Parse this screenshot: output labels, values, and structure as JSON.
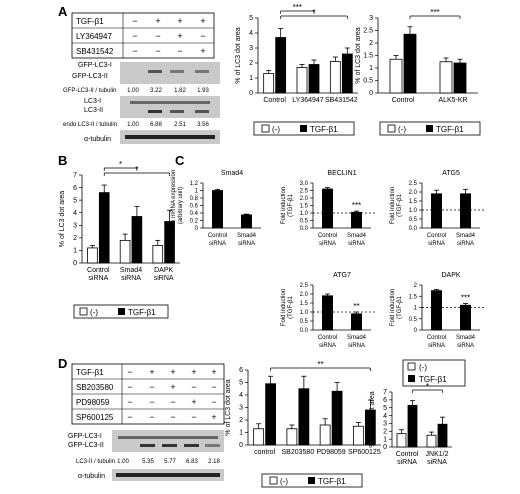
{
  "panel_letters": [
    "A",
    "B",
    "C",
    "D"
  ],
  "panelA": {
    "treatment_rows": [
      "TGF-β1",
      "LY364947",
      "SB431542"
    ],
    "treatment_signs": [
      [
        "−",
        "+",
        "+",
        "+"
      ],
      [
        "−",
        "−",
        "+",
        "−"
      ],
      [
        "−",
        "−",
        "−",
        "+"
      ]
    ],
    "blot_labels": [
      "GFP-LC3-I",
      "GFP-LC3-II",
      "LC3-I",
      "LC3-II",
      "α-tubulin"
    ],
    "ratio_gfp": {
      "label": "GFP-LC3-II / tubulin",
      "values": [
        "1.00",
        "3.22",
        "1.82",
        "1.93"
      ]
    },
    "ratio_endo": {
      "label": "endo LC3-II / tubulin",
      "values": [
        "1.00",
        "6.88",
        "2.51",
        "3.56"
      ]
    }
  },
  "panelD": {
    "treatment_rows": [
      "TGF-β1",
      "SB203580",
      "PD98059",
      "SP600125"
    ],
    "treatment_signs": [
      [
        "−",
        "+",
        "+",
        "+",
        "+"
      ],
      [
        "−",
        "−",
        "+",
        "−",
        "−"
      ],
      [
        "−",
        "−",
        "−",
        "+",
        "−"
      ],
      [
        "−",
        "−",
        "−",
        "−",
        "+"
      ]
    ],
    "blot_labels": [
      "GFP-LC3-I",
      "GFP-LC3-II",
      "α-tubulin"
    ],
    "ratio": {
      "label": "LC3-II / tubulin",
      "values": [
        "1.00",
        "5.35",
        "5.77",
        "6.83",
        "2.18"
      ]
    }
  },
  "legend": {
    "neg": "(-)",
    "pos": "TGF-β1"
  },
  "chart_data": [
    {
      "id": "A1",
      "type": "bar",
      "ylabel": "% of LC3 dot area",
      "ylim": [
        0,
        5
      ],
      "yticks": [
        0,
        1,
        2,
        3,
        4,
        5
      ],
      "categories": [
        "Control",
        "LY364947",
        "SB431542"
      ],
      "series": [
        {
          "name": "(-)",
          "values": [
            1.3,
            1.7,
            2.1
          ],
          "errors": [
            0.2,
            0.2,
            0.3
          ]
        },
        {
          "name": "TGF-β1",
          "values": [
            3.7,
            1.9,
            2.6
          ],
          "errors": [
            0.6,
            0.3,
            0.4
          ]
        }
      ],
      "significance": [
        "***",
        "*"
      ]
    },
    {
      "id": "A2",
      "type": "bar",
      "ylabel": "% of LC3 dot area",
      "ylim": [
        0,
        3
      ],
      "yticks": [
        0,
        0.5,
        1,
        1.5,
        2,
        2.5,
        3
      ],
      "categories": [
        "Control",
        "ALK5-KR"
      ],
      "series": [
        {
          "name": "(-)",
          "values": [
            1.35,
            1.25
          ],
          "errors": [
            0.15,
            0.15
          ]
        },
        {
          "name": "TGF-β1",
          "values": [
            2.35,
            1.2
          ],
          "errors": [
            0.3,
            0.15
          ]
        }
      ],
      "significance": [
        "***"
      ]
    },
    {
      "id": "B",
      "type": "bar",
      "ylabel": "% of LC3 dot area",
      "ylim": [
        0,
        7
      ],
      "yticks": [
        0,
        1,
        2,
        3,
        4,
        5,
        6,
        7
      ],
      "categories": [
        "Control siRNA",
        "Smad4 siRNA",
        "DAPK siRNA"
      ],
      "series": [
        {
          "name": "(-)",
          "values": [
            1.2,
            1.8,
            1.4
          ],
          "errors": [
            0.2,
            0.5,
            0.4
          ]
        },
        {
          "name": "TGF-β1",
          "values": [
            5.6,
            3.7,
            3.3
          ],
          "errors": [
            0.6,
            0.8,
            0.9
          ]
        }
      ],
      "significance": [
        "*",
        "*"
      ]
    },
    {
      "id": "C1",
      "type": "bar",
      "title": "Smad4",
      "ylabel": "Relative mRNA expression (arbitrary unit)",
      "ylim": [
        0,
        1.2
      ],
      "yticks": [
        0,
        0.2,
        0.4,
        0.6,
        0.8,
        1.0,
        1.2
      ],
      "categories": [
        "Control siRNA",
        "Smad4 siRNA"
      ],
      "values": [
        1.0,
        0.35
      ],
      "errors": [
        0.03,
        0.02
      ]
    },
    {
      "id": "C2",
      "type": "bar",
      "title": "BECLIN1",
      "ylabel": "Fold induction (TGF-β1 (+) / (-))",
      "ylim": [
        0,
        3
      ],
      "yticks": [
        0,
        0.5,
        1,
        1.5,
        2,
        2.5,
        3
      ],
      "categories": [
        "Control siRNA",
        "Smad4 siRNA"
      ],
      "values": [
        2.6,
        1.05
      ],
      "errors": [
        0.1,
        0.08
      ],
      "significance": [
        "***"
      ]
    },
    {
      "id": "C3",
      "type": "bar",
      "title": "ATG5",
      "ylabel": "Fold induction (TGF-β1 (+) / (-))",
      "ylim": [
        0,
        2.5
      ],
      "yticks": [
        0,
        0.5,
        1,
        1.5,
        2,
        2.5
      ],
      "categories": [
        "Control siRNA",
        "Smad4 siRNA"
      ],
      "values": [
        1.9,
        1.9
      ],
      "errors": [
        0.2,
        0.25
      ]
    },
    {
      "id": "C4",
      "type": "bar",
      "title": "ATG7",
      "ylabel": "Fold induction (TGF-β1 (+) / (-))",
      "ylim": [
        0,
        2.5
      ],
      "yticks": [
        0,
        0.5,
        1,
        1.5,
        2,
        2.5
      ],
      "categories": [
        "Control siRNA",
        "Smad4 siRNA"
      ],
      "values": [
        1.9,
        0.9
      ],
      "errors": [
        0.1,
        0.1
      ],
      "significance": [
        "**"
      ]
    },
    {
      "id": "C5",
      "type": "bar",
      "title": "DAPK",
      "ylabel": "Fold induction (TGF-β1 (+) / (-))",
      "ylim": [
        0,
        2
      ],
      "yticks": [
        0,
        0.5,
        1,
        1.5,
        2
      ],
      "categories": [
        "Control siRNA",
        "Smad4 siRNA"
      ],
      "values": [
        1.75,
        1.1
      ],
      "errors": [
        0.05,
        0.08
      ],
      "significance": [
        "***"
      ]
    },
    {
      "id": "D1",
      "type": "bar",
      "ylabel": "% of LC3 dot area",
      "ylim": [
        0,
        6
      ],
      "yticks": [
        0,
        1,
        2,
        3,
        4,
        5,
        6
      ],
      "categories": [
        "control",
        "SB203580",
        "PD98059",
        "SP600125"
      ],
      "series": [
        {
          "name": "(-)",
          "values": [
            1.3,
            1.3,
            1.6,
            1.5
          ],
          "errors": [
            0.4,
            0.3,
            0.5,
            0.3
          ]
        },
        {
          "name": "TGF-β1",
          "values": [
            4.9,
            4.5,
            4.3,
            2.8
          ],
          "errors": [
            0.6,
            1.0,
            0.7,
            0.8
          ]
        }
      ],
      "significance": [
        "**"
      ]
    },
    {
      "id": "D2",
      "type": "bar",
      "ylabel": "% of LC3 dot area",
      "ylim": [
        0,
        7
      ],
      "yticks": [
        0,
        1,
        2,
        3,
        4,
        5,
        6,
        7
      ],
      "categories": [
        "Control siRNA",
        "JNK1/2 siRNA"
      ],
      "series": [
        {
          "name": "(-)",
          "values": [
            1.7,
            1.5
          ],
          "errors": [
            0.5,
            0.4
          ]
        },
        {
          "name": "TGF-β1",
          "values": [
            5.3,
            2.9
          ],
          "errors": [
            0.6,
            0.9
          ]
        }
      ],
      "significance": [
        "*"
      ]
    }
  ]
}
